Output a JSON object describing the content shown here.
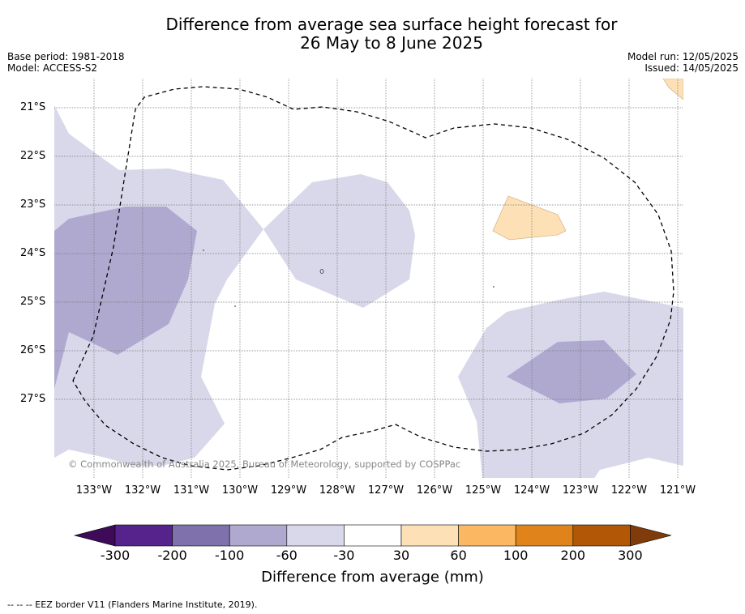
{
  "title": {
    "line1": "Difference from average sea surface height forecast for",
    "line2": "26 May to 8 June 2025"
  },
  "meta": {
    "base_period": "Base period: 1981-2018",
    "model": "Model: ACCESS-S2",
    "model_run": "Model run: 12/05/2025",
    "issued": "Issued: 14/05/2025"
  },
  "map": {
    "lat_labels": [
      "21°S",
      "22°S",
      "23°S",
      "24°S",
      "25°S",
      "26°S",
      "27°S"
    ],
    "lon_labels": [
      "133°W",
      "132°W",
      "131°W",
      "130°W",
      "129°W",
      "128°W",
      "127°W",
      "126°W",
      "125°W",
      "124°W",
      "123°W",
      "122°W",
      "121°W"
    ],
    "copyright": "© Commonwealth of Australia 2025, Bureau of Meteorology, supported by COSPPac",
    "colors": {
      "neg_100_60": "#afa9d0",
      "neg_60_30": "#d8d8ea",
      "pos_30_60": "#fde0b6"
    }
  },
  "colorbar": {
    "title": "Difference from average (mm)",
    "ticks": [
      "-300",
      "-200",
      "-100",
      "-60",
      "-30",
      "30",
      "60",
      "100",
      "200",
      "300"
    ],
    "colors": [
      "#3f0b59",
      "#56228b",
      "#7f72ac",
      "#afa9d0",
      "#d8d8ea",
      "#ffffff",
      "#fde0b6",
      "#fbb762",
      "#e0831b",
      "#b25706",
      "#7f3c0a"
    ]
  },
  "footnote": "--  --  -- EEZ border V11 (Flanders Marine Institute, 2019)."
}
